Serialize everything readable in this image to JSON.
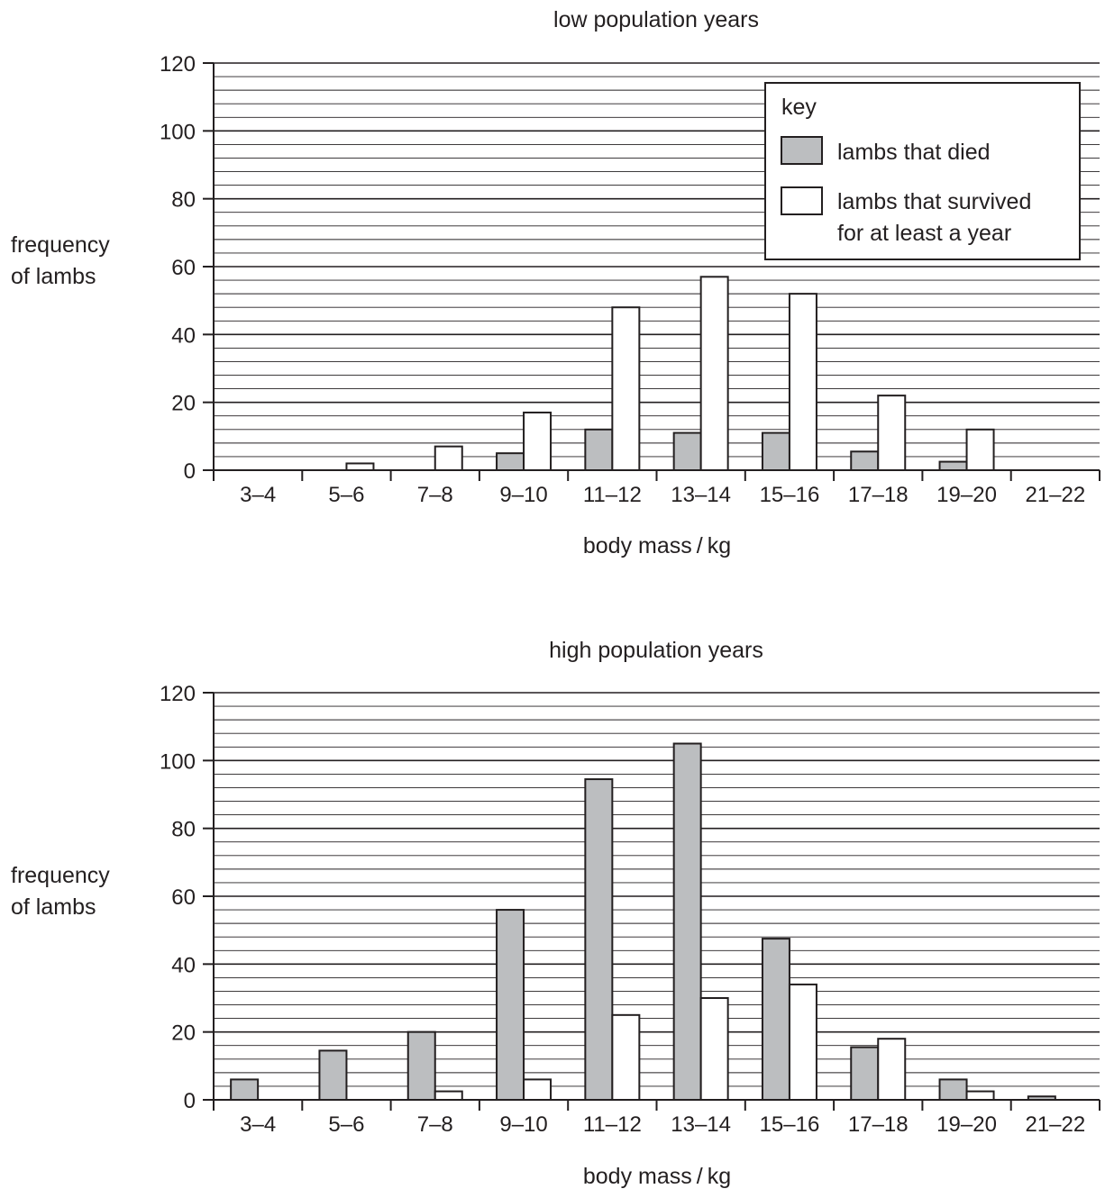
{
  "colors": {
    "died": "#bcbec0",
    "survived": "#ffffff",
    "ink": "#231f20"
  },
  "key": {
    "title": "key",
    "died_label": "lambs that died",
    "survived_label_line1": "lambs that survived",
    "survived_label_line2": "for at least a year"
  },
  "chart_data": [
    {
      "type": "bar",
      "title": "low population years",
      "xlabel": "body mass / kg",
      "ylabel_line1": "frequency",
      "ylabel_line2": "of lambs",
      "ylim": [
        0,
        120
      ],
      "yticks": [
        "0",
        "20",
        "40",
        "60",
        "80",
        "100",
        "120"
      ],
      "grid": true,
      "legend": "top-right",
      "categories": [
        "3–4",
        "5–6",
        "7–8",
        "9–10",
        "11–12",
        "13–14",
        "15–16",
        "17–18",
        "19–20",
        "21–22"
      ],
      "series": [
        {
          "name": "lambs that died",
          "values": [
            0,
            0,
            0,
            5,
            12,
            11,
            11,
            5.5,
            2.5,
            0
          ]
        },
        {
          "name": "lambs that survived for at least a year",
          "values": [
            0,
            2,
            7,
            17,
            48,
            57,
            52,
            22,
            12,
            0
          ]
        }
      ]
    },
    {
      "type": "bar",
      "title": "high population years",
      "xlabel": "body mass / kg",
      "ylabel_line1": "frequency",
      "ylabel_line2": "of lambs",
      "ylim": [
        0,
        120
      ],
      "yticks": [
        "0",
        "20",
        "40",
        "60",
        "80",
        "100",
        "120"
      ],
      "grid": true,
      "categories": [
        "3–4",
        "5–6",
        "7–8",
        "9–10",
        "11–12",
        "13–14",
        "15–16",
        "17–18",
        "19–20",
        "21–22"
      ],
      "series": [
        {
          "name": "lambs that died",
          "values": [
            6,
            14.5,
            20,
            56,
            94.5,
            105,
            47.5,
            15.5,
            6,
            1
          ]
        },
        {
          "name": "lambs that survived for at least a year",
          "values": [
            0,
            0,
            2.5,
            6,
            25,
            30,
            34,
            18,
            2.5,
            0
          ]
        }
      ]
    }
  ]
}
